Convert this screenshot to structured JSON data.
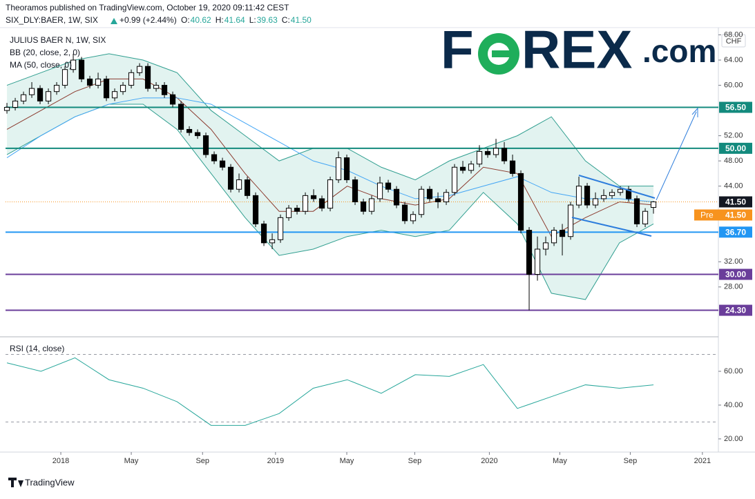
{
  "header": {
    "publisher": "Theoramos published on TradingView.com, October 19, 2020 09:11:42 CEST",
    "symbol": "SIX_DLY:BAER, 1W, SIX",
    "change": "+0.99 (+2.44%)",
    "ohlc": [
      {
        "label": "O:",
        "value": "40.62"
      },
      {
        "label": "H:",
        "value": "41.64"
      },
      {
        "label": "L:",
        "value": "39.63"
      },
      {
        "label": "C:",
        "value": "41.50"
      }
    ]
  },
  "logo": {
    "first": "F",
    "rest": "REX",
    "suffix": ".com"
  },
  "footer": "TradingView",
  "chart_data": {
    "type": "candlestick",
    "title": "JULIUS BAER N, 1W, SIX",
    "currency": "CHF",
    "xlim": [
      -0.17,
      85.83
    ],
    "xticks": [
      {
        "value": 6.5,
        "label": "2018"
      },
      {
        "value": 15,
        "label": "May"
      },
      {
        "value": 23.6,
        "label": "Sep"
      },
      {
        "value": 32.4,
        "label": "2019"
      },
      {
        "value": 41,
        "label": "May"
      },
      {
        "value": 49.2,
        "label": "Sep"
      },
      {
        "value": 58.2,
        "label": "2020"
      },
      {
        "value": 66.7,
        "label": "May"
      },
      {
        "value": 75.2,
        "label": "Sep"
      },
      {
        "value": 83.9,
        "label": "2021"
      }
    ],
    "ylim": [
      20.2,
      69.15
    ],
    "yticks": [
      {
        "value": 68,
        "label": "68.00"
      },
      {
        "value": 64,
        "label": "64.00"
      },
      {
        "value": 60,
        "label": "60.00"
      },
      {
        "value": 52,
        "label": "52.00"
      },
      {
        "value": 48,
        "label": "48.00"
      },
      {
        "value": 44,
        "label": "44.00"
      },
      {
        "value": 32,
        "label": "32.00"
      },
      {
        "value": 28,
        "label": "28.00"
      }
    ],
    "grid": false,
    "candles": [
      {
        "o": 56,
        "h": 57.2,
        "l": 55.5,
        "c": 56.5
      },
      {
        "o": 56.5,
        "h": 58,
        "l": 56,
        "c": 57.5
      },
      {
        "o": 57.5,
        "h": 59,
        "l": 57,
        "c": 58.5
      },
      {
        "o": 58.5,
        "h": 60.5,
        "l": 58,
        "c": 59.5
      },
      {
        "o": 59.5,
        "h": 60,
        "l": 57,
        "c": 57.5
      },
      {
        "o": 57.5,
        "h": 59.5,
        "l": 57,
        "c": 59
      },
      {
        "o": 59,
        "h": 60.5,
        "l": 58.5,
        "c": 60
      },
      {
        "o": 60,
        "h": 63,
        "l": 59.5,
        "c": 62.5
      },
      {
        "o": 62.5,
        "h": 65,
        "l": 62,
        "c": 64
      },
      {
        "o": 64,
        "h": 64.5,
        "l": 60.5,
        "c": 61
      },
      {
        "o": 61,
        "h": 61.5,
        "l": 59.5,
        "c": 60
      },
      {
        "o": 60,
        "h": 62,
        "l": 59.5,
        "c": 61
      },
      {
        "o": 61,
        "h": 61.5,
        "l": 57.5,
        "c": 58
      },
      {
        "o": 58,
        "h": 59.5,
        "l": 57.5,
        "c": 59
      },
      {
        "o": 59,
        "h": 60.5,
        "l": 58.5,
        "c": 60
      },
      {
        "o": 60,
        "h": 62.5,
        "l": 59.5,
        "c": 62
      },
      {
        "o": 62,
        "h": 63.5,
        "l": 61.5,
        "c": 63
      },
      {
        "o": 63,
        "h": 63.5,
        "l": 59,
        "c": 59.5
      },
      {
        "o": 59.5,
        "h": 60.5,
        "l": 59,
        "c": 60
      },
      {
        "o": 60,
        "h": 60.5,
        "l": 58,
        "c": 58.5
      },
      {
        "o": 58.5,
        "h": 59,
        "l": 56.5,
        "c": 57
      },
      {
        "o": 57,
        "h": 57.5,
        "l": 52.5,
        "c": 53
      },
      {
        "o": 53,
        "h": 53.5,
        "l": 52,
        "c": 52.5
      },
      {
        "o": 52.5,
        "h": 53,
        "l": 51.5,
        "c": 52
      },
      {
        "o": 52,
        "h": 52.5,
        "l": 48.5,
        "c": 49
      },
      {
        "o": 49,
        "h": 49.5,
        "l": 47.5,
        "c": 48
      },
      {
        "o": 48,
        "h": 48.5,
        "l": 46.5,
        "c": 47
      },
      {
        "o": 47,
        "h": 47.5,
        "l": 43,
        "c": 43.5
      },
      {
        "o": 43.5,
        "h": 46,
        "l": 43,
        "c": 45
      },
      {
        "o": 45,
        "h": 45.5,
        "l": 42,
        "c": 42.5
      },
      {
        "o": 42.5,
        "h": 43,
        "l": 37.5,
        "c": 38
      },
      {
        "o": 38,
        "h": 38.5,
        "l": 34.5,
        "c": 35
      },
      {
        "o": 35,
        "h": 36.5,
        "l": 34,
        "c": 35.5
      },
      {
        "o": 35.5,
        "h": 39.5,
        "l": 35,
        "c": 39
      },
      {
        "o": 39,
        "h": 41,
        "l": 38.5,
        "c": 40.5
      },
      {
        "o": 40.5,
        "h": 41,
        "l": 39.5,
        "c": 40
      },
      {
        "o": 40,
        "h": 43,
        "l": 39.5,
        "c": 42.5
      },
      {
        "o": 42.5,
        "h": 43.5,
        "l": 41.5,
        "c": 42
      },
      {
        "o": 42,
        "h": 42.5,
        "l": 40,
        "c": 40.5
      },
      {
        "o": 40.5,
        "h": 45.5,
        "l": 40,
        "c": 45
      },
      {
        "o": 45,
        "h": 49.5,
        "l": 44.5,
        "c": 48.5
      },
      {
        "o": 48.5,
        "h": 49,
        "l": 44.5,
        "c": 45
      },
      {
        "o": 45,
        "h": 45.5,
        "l": 41,
        "c": 41.5
      },
      {
        "o": 41.5,
        "h": 42,
        "l": 39.5,
        "c": 40
      },
      {
        "o": 40,
        "h": 42.5,
        "l": 39.5,
        "c": 42
      },
      {
        "o": 42,
        "h": 45.5,
        "l": 41.5,
        "c": 44.5
      },
      {
        "o": 44.5,
        "h": 45,
        "l": 43,
        "c": 43.5
      },
      {
        "o": 43.5,
        "h": 44,
        "l": 40.5,
        "c": 41
      },
      {
        "o": 41,
        "h": 41.5,
        "l": 38,
        "c": 38.5
      },
      {
        "o": 38.5,
        "h": 40,
        "l": 38,
        "c": 39.5
      },
      {
        "o": 39.5,
        "h": 44,
        "l": 39,
        "c": 43.5
      },
      {
        "o": 43.5,
        "h": 44,
        "l": 41.5,
        "c": 42
      },
      {
        "o": 42,
        "h": 43,
        "l": 40.5,
        "c": 41.5
      },
      {
        "o": 41.5,
        "h": 43.5,
        "l": 41,
        "c": 43
      },
      {
        "o": 43,
        "h": 47.5,
        "l": 42.5,
        "c": 47
      },
      {
        "o": 47,
        "h": 48,
        "l": 46,
        "c": 46.5
      },
      {
        "o": 46.5,
        "h": 48,
        "l": 46,
        "c": 47.5
      },
      {
        "o": 47.5,
        "h": 50.5,
        "l": 47,
        "c": 49.5
      },
      {
        "o": 49.5,
        "h": 50,
        "l": 48.5,
        "c": 49
      },
      {
        "o": 49,
        "h": 51.5,
        "l": 48.5,
        "c": 50
      },
      {
        "o": 50,
        "h": 51,
        "l": 47.5,
        "c": 48
      },
      {
        "o": 48,
        "h": 49,
        "l": 45.5,
        "c": 46
      },
      {
        "o": 46,
        "h": 46.5,
        "l": 36.5,
        "c": 37
      },
      {
        "o": 37,
        "h": 37.5,
        "l": 24.3,
        "c": 30
      },
      {
        "o": 30,
        "h": 36,
        "l": 29,
        "c": 34
      },
      {
        "o": 34,
        "h": 36,
        "l": 33,
        "c": 35
      },
      {
        "o": 35,
        "h": 37.5,
        "l": 34.5,
        "c": 37
      },
      {
        "o": 37,
        "h": 38,
        "l": 33,
        "c": 36
      },
      {
        "o": 36,
        "h": 41.5,
        "l": 35.5,
        "c": 41
      },
      {
        "o": 41,
        "h": 45.5,
        "l": 40.5,
        "c": 44
      },
      {
        "o": 44,
        "h": 44.5,
        "l": 40.5,
        "c": 41
      },
      {
        "o": 41,
        "h": 43,
        "l": 40.5,
        "c": 42
      },
      {
        "o": 42,
        "h": 43.5,
        "l": 41.5,
        "c": 42.5
      },
      {
        "o": 42.5,
        "h": 43.5,
        "l": 42,
        "c": 43
      },
      {
        "o": 43,
        "h": 44,
        "l": 42.5,
        "c": 43.5
      },
      {
        "o": 43.5,
        "h": 44,
        "l": 41.5,
        "c": 42
      },
      {
        "o": 42,
        "h": 42.5,
        "l": 37.5,
        "c": 38
      },
      {
        "o": 38,
        "h": 40.5,
        "l": 37.5,
        "c": 40
      },
      {
        "o": 40.62,
        "h": 41.64,
        "l": 39.63,
        "c": 41.5
      }
    ],
    "bb": {
      "label": "BB (20, close, 2, 0)",
      "fill": "#d6eeea",
      "band_color": "#2f9e8f",
      "basis_color": "#8b3a2e",
      "upper": [
        60,
        62,
        64,
        65,
        64,
        62,
        56,
        52,
        48,
        50,
        50,
        47,
        45,
        48,
        50,
        52,
        55,
        48,
        44,
        44
      ],
      "basis": [
        53,
        56,
        59,
        61,
        61,
        58,
        53,
        46,
        40,
        40,
        44,
        42,
        41,
        42,
        47,
        46,
        36,
        39,
        41.5,
        41
      ],
      "lower": [
        49,
        52,
        55,
        57,
        57,
        53,
        46,
        39,
        33,
        34,
        36,
        37,
        36,
        37,
        43,
        38,
        27,
        26,
        35,
        38
      ]
    },
    "ma": {
      "label": "MA (50, close, 0)",
      "color": "#42a5f5",
      "values": [
        48.5,
        52,
        55,
        57,
        58,
        58,
        57,
        54,
        51,
        48,
        46.5,
        44,
        42,
        42.5,
        44,
        45.5,
        43,
        42,
        42,
        41.5
      ]
    },
    "levels": [
      {
        "value": 56.5,
        "label": "56.50",
        "color": "#138a7d"
      },
      {
        "value": 50,
        "label": "50.00",
        "color": "#138a7d"
      },
      {
        "value": 36.7,
        "label": "36.70",
        "color": "#2196f3"
      },
      {
        "value": 30,
        "label": "30.00",
        "color": "#6a3d9a"
      },
      {
        "value": 24.3,
        "label": "24.30",
        "color": "#6a3d9a"
      }
    ],
    "last_price": {
      "value": 41.5,
      "label": "41.50"
    },
    "pre": {
      "text": "Pre",
      "value": 41.5,
      "label": "41.50"
    },
    "rsi": {
      "label": "RSI (14, close)",
      "color": "#26a69a",
      "ylim": [
        12.2,
        79.6
      ],
      "yticks": [
        {
          "value": 60,
          "label": "60.00"
        },
        {
          "value": 40,
          "label": "40.00"
        },
        {
          "value": 20,
          "label": "20.00"
        }
      ],
      "levels": [
        70,
        30
      ],
      "values": [
        65,
        60,
        68,
        55,
        50,
        42,
        28,
        28,
        35,
        50,
        55,
        47,
        58,
        57,
        64,
        38,
        45,
        52,
        50,
        52
      ]
    }
  }
}
